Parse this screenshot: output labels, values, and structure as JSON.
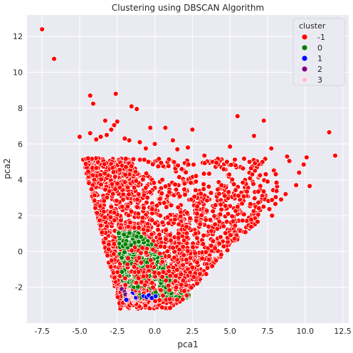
{
  "chart_data": {
    "type": "scatter",
    "title": "Clustering using DBSCAN Algorithm",
    "xlabel": "pca1",
    "ylabel": "pca2",
    "xlim": [
      -8.5,
      12.9
    ],
    "ylim": [
      -4.0,
      13.2
    ],
    "xticks": [
      "-7.5",
      "-5.0",
      "-2.5",
      "0.0",
      "2.5",
      "5.0",
      "7.5",
      "10.0",
      "12.5"
    ],
    "xtick_values": [
      -7.5,
      -5.0,
      -2.5,
      0.0,
      2.5,
      5.0,
      7.5,
      10.0,
      12.5
    ],
    "yticks": [
      "-2",
      "0",
      "2",
      "4",
      "6",
      "8",
      "10",
      "12"
    ],
    "ytick_values": [
      -2,
      0,
      2,
      4,
      6,
      8,
      10,
      12
    ],
    "grid": true,
    "background": "#eaeaf2",
    "legend": {
      "title": "cluster",
      "placement": "top-right",
      "entries": [
        {
          "label": "-1",
          "color": "#ff0000"
        },
        {
          "label": "0",
          "color": "#008000"
        },
        {
          "label": "1",
          "color": "#0000ff"
        },
        {
          "label": "2",
          "color": "#800080"
        },
        {
          "label": "3",
          "color": "#ffc0cb"
        }
      ]
    },
    "series": [
      {
        "cluster": "-1",
        "color": "#ff0000",
        "points": [
          [
            -7.5,
            12.4
          ],
          [
            -6.7,
            10.75
          ],
          [
            -4.3,
            8.7
          ],
          [
            -4.1,
            8.25
          ],
          [
            -2.6,
            8.8
          ],
          [
            -1.55,
            8.1
          ],
          [
            -1.2,
            7.95
          ],
          [
            -0.3,
            6.9
          ],
          [
            0.7,
            6.9
          ],
          [
            2.5,
            6.8
          ],
          [
            5.5,
            7.55
          ],
          [
            7.25,
            7.3
          ],
          [
            11.6,
            6.65
          ],
          [
            12.0,
            5.35
          ],
          [
            10.1,
            5.25
          ],
          [
            9.9,
            4.85
          ],
          [
            9.6,
            4.4
          ],
          [
            8.8,
            5.3
          ],
          [
            8.95,
            5.05
          ],
          [
            7.75,
            5.75
          ],
          [
            6.6,
            6.45
          ],
          [
            6.3,
            5.0
          ],
          [
            5.0,
            5.85
          ],
          [
            4.1,
            4.95
          ],
          [
            -5.0,
            6.4
          ],
          [
            -4.3,
            6.6
          ],
          [
            -3.9,
            6.25
          ],
          [
            -3.6,
            6.4
          ],
          [
            -3.2,
            6.5
          ],
          [
            -2.9,
            6.8
          ],
          [
            -2.7,
            7.05
          ],
          [
            -2.5,
            7.25
          ],
          [
            -3.3,
            7.3
          ],
          [
            -2.0,
            6.3
          ],
          [
            -1.7,
            6.2
          ],
          [
            -1.0,
            6.1
          ],
          [
            -0.6,
            5.75
          ],
          [
            0.0,
            6.0
          ],
          [
            1.2,
            6.2
          ],
          [
            1.5,
            5.7
          ],
          [
            2.2,
            5.8
          ],
          [
            3.3,
            5.35
          ],
          [
            9.4,
            3.7
          ],
          [
            10.3,
            3.65
          ],
          [
            8.7,
            3.2
          ],
          [
            8.4,
            2.9
          ],
          [
            7.8,
            2.0
          ],
          [
            7.5,
            3.9
          ]
        ],
        "region": {
          "x_min": -4.9,
          "x_max": 8.3,
          "y_min": -3.2,
          "y_max": 5.2,
          "count": 2100
        }
      },
      {
        "cluster": "0",
        "color": "#008000",
        "region": {
          "x_min": -2.6,
          "x_max": 2.5,
          "y_min": -2.6,
          "y_max": 1.1,
          "count": 320
        }
      },
      {
        "cluster": "1",
        "color": "#0000ff",
        "points": [
          [
            -1.5,
            -2.35
          ],
          [
            -0.75,
            -2.5
          ],
          [
            -0.55,
            -2.55
          ],
          [
            -0.4,
            -2.45
          ],
          [
            -0.2,
            -2.6
          ],
          [
            0.05,
            -2.5
          ],
          [
            -1.9,
            -2.7
          ],
          [
            -1.3,
            -2.6
          ]
        ]
      },
      {
        "cluster": "2",
        "color": "#800080",
        "points": [
          [
            -2.2,
            -2.1
          ],
          [
            -2.0,
            -2.25
          ],
          [
            -1.95,
            -2.4
          ]
        ]
      },
      {
        "cluster": "3",
        "color": "#ffc0cb",
        "points": [
          [
            -1.7,
            -2.45
          ],
          [
            -1.55,
            -2.55
          ],
          [
            -1.4,
            -2.8
          ],
          [
            -0.2,
            -2.95
          ],
          [
            -1.75,
            -2.15
          ]
        ]
      }
    ]
  }
}
